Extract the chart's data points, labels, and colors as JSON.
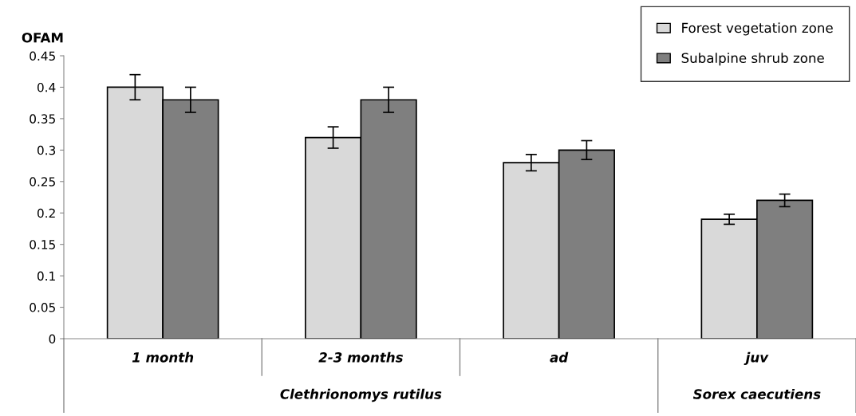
{
  "chart_data": {
    "type": "bar",
    "ylabel": "OFAM",
    "categories": [
      "1 month",
      "2-3 months",
      "ad",
      "juv"
    ],
    "series": [
      {
        "name": "Forest vegetation zone",
        "color": "#d9d9d9",
        "values": [
          0.4,
          0.32,
          0.28,
          0.19
        ],
        "errors": [
          0.02,
          0.017,
          0.013,
          0.008
        ]
      },
      {
        "name": "Subalpine shrub zone",
        "color": "#7f7f7f",
        "values": [
          0.38,
          0.38,
          0.3,
          0.22
        ],
        "errors": [
          0.02,
          0.02,
          0.015,
          0.01
        ]
      }
    ],
    "annotations": [
      "Clethrionomys rutilus",
      "Sorex caecutiens"
    ],
    "ylim": [
      0,
      0.45
    ],
    "yticks": [
      0,
      0.05,
      0.1,
      0.15,
      0.2,
      0.25,
      0.3,
      0.35,
      0.4,
      0.45
    ],
    "grid": false,
    "legend": "top right"
  }
}
